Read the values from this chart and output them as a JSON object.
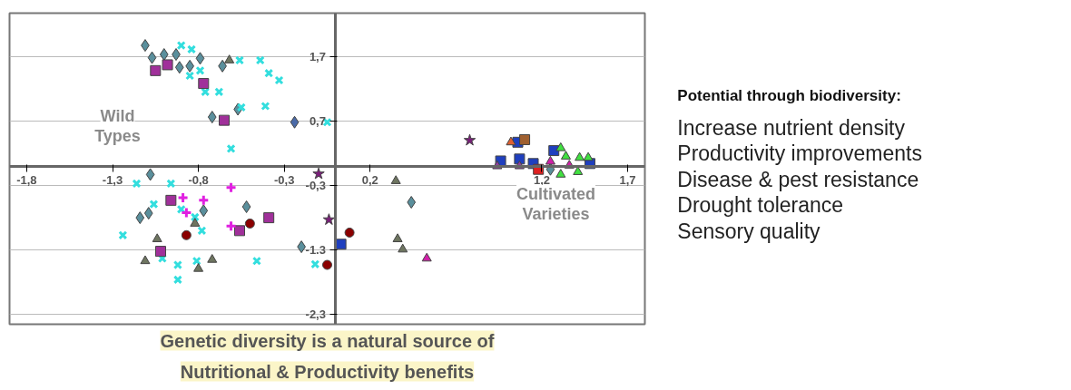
{
  "chart_data": [
    {
      "type": "scatter",
      "xlim": [
        -1.9,
        1.8
      ],
      "ylim": [
        -2.45,
        2.37
      ],
      "xticks": [
        {
          "value": -1.8,
          "label": "-1,8"
        },
        {
          "value": -1.3,
          "label": "-1,3"
        },
        {
          "value": -0.8,
          "label": "-0,8"
        },
        {
          "value": -0.3,
          "label": "-0,3"
        },
        {
          "value": 0.2,
          "label": "0,2"
        },
        {
          "value": 1.2,
          "label": "1,2"
        },
        {
          "value": 1.7,
          "label": "1,7"
        }
      ],
      "yticks": [
        {
          "value": 1.7,
          "label": "1,7"
        },
        {
          "value": 0.7,
          "label": "0,7"
        },
        {
          "value": -0.3,
          "label": "-0,3"
        },
        {
          "value": -1.3,
          "label": "-1.3"
        },
        {
          "value": -2.3,
          "label": "-2,3"
        }
      ],
      "grid": "y",
      "annotations": [
        "Wild\nTypes",
        "Cultivated\nVarieties",
        "Genetic diversity is a natural source of\nNutritional & Productivity benefits"
      ],
      "series": [
        {
          "color": "#5a8f9c",
          "marker": "diamond",
          "x": [
            -1.11,
            -1.07,
            -1.0,
            -0.93,
            -0.91,
            -0.85,
            -0.79,
            -0.66,
            -0.72,
            -0.57,
            -1.08,
            -1.14,
            -1.09,
            -0.77,
            -0.52,
            -0.2,
            0.44,
            1.25
          ],
          "values": [
            1.87,
            1.68,
            1.73,
            1.73,
            1.53,
            1.55,
            1.67,
            1.55,
            0.76,
            0.88,
            -0.13,
            -0.8,
            -0.73,
            -0.69,
            -0.63,
            -1.25,
            -0.56,
            -0.05
          ]
        },
        {
          "color": "#4a6aa8",
          "marker": "diamond",
          "x": [
            -0.24
          ],
          "values": [
            0.68
          ]
        },
        {
          "color": "#33dede",
          "marker": "x",
          "x": [
            -0.9,
            -0.84,
            -0.79,
            -0.85,
            -0.76,
            -0.68,
            -0.56,
            -0.44,
            -0.39,
            -0.33,
            -0.55,
            -0.41,
            -0.61,
            -0.05,
            -1.16,
            -0.96,
            -1.06,
            -0.9,
            -0.82,
            -0.78,
            -1.24,
            -1.01,
            -0.92,
            -0.92,
            -0.81,
            -0.46,
            -0.12
          ],
          "values": [
            1.87,
            1.81,
            1.48,
            1.4,
            1.15,
            1.15,
            1.64,
            1.64,
            1.44,
            1.33,
            0.91,
            0.93,
            0.27,
            0.68,
            -0.27,
            -0.27,
            -0.59,
            -0.67,
            -0.79,
            -1.0,
            -1.07,
            -1.43,
            -1.53,
            -1.76,
            -1.47,
            -1.47,
            -1.52
          ]
        },
        {
          "color": "#a0309a",
          "marker": "square",
          "x": [
            -1.05,
            -0.98,
            -0.77,
            -0.65,
            -0.96,
            -0.56,
            -0.39,
            -1.02
          ],
          "values": [
            1.48,
            1.57,
            1.28,
            0.71,
            -0.53,
            -1.0,
            -0.8,
            -1.32
          ]
        },
        {
          "color": "#e020e0",
          "marker": "cross",
          "x": [
            -0.89,
            -0.77,
            -0.61,
            -0.87,
            -0.61
          ],
          "values": [
            -0.49,
            -0.53,
            -0.33,
            -0.72,
            -0.93
          ]
        },
        {
          "color": "#6e7560",
          "marker": "triangle",
          "x": [
            -0.62,
            -0.82,
            -1.04,
            -1.11,
            -0.8,
            -0.72,
            0.35,
            0.36,
            0.39
          ],
          "values": [
            1.64,
            -0.89,
            -1.13,
            -1.47,
            -1.59,
            -1.45,
            -0.23,
            -1.13,
            -1.29
          ]
        },
        {
          "color": "#8b0000",
          "marker": "circle",
          "x": [
            -0.87,
            -0.5,
            -0.05,
            0.08
          ],
          "values": [
            -1.07,
            -0.89,
            -1.53,
            -1.03
          ]
        },
        {
          "color": "#7a1f7a",
          "marker": "star",
          "x": [
            -0.1,
            -0.04,
            0.78
          ],
          "values": [
            -0.12,
            -0.83,
            0.4
          ]
        },
        {
          "color": "#1f3fbf",
          "marker": "square",
          "x": [
            0.03,
            1.06,
            0.96,
            1.07,
            1.15,
            1.27,
            1.48
          ],
          "values": [
            -1.21,
            0.37,
            0.08,
            0.11,
            0.04,
            0.24,
            0.04
          ]
        },
        {
          "color": "#d020a8",
          "marker": "triangle",
          "x": [
            0.53,
            1.25,
            1.36
          ],
          "values": [
            -1.43,
            0.07,
            0.01
          ]
        },
        {
          "color": "#9040a0",
          "marker": "triangle",
          "x": [
            0.94,
            1.07
          ],
          "values": [
            0.0,
            0.0
          ]
        },
        {
          "color": "#40e040",
          "marker": "triangle",
          "x": [
            1.31,
            1.42,
            1.47,
            1.34,
            1.31,
            1.41
          ],
          "values": [
            0.28,
            0.13,
            0.13,
            0.15,
            -0.13,
            -0.09
          ]
        },
        {
          "color": "#e06030",
          "marker": "triangle",
          "x": [
            1.02
          ],
          "values": [
            0.37
          ]
        },
        {
          "color": "#a06030",
          "marker": "square",
          "x": [
            1.1
          ],
          "values": [
            0.41
          ]
        },
        {
          "color": "#e02020",
          "marker": "square",
          "x": [
            1.18
          ],
          "values": [
            -0.05
          ]
        }
      ]
    },
    {
      "type": "other",
      "title": "Potential through biodiversity:",
      "annotations": [
        "Increase nutrient density",
        "Productivity improvements",
        "Disease & pest resistance",
        "Drought tolerance",
        "Sensory quality"
      ]
    }
  ]
}
